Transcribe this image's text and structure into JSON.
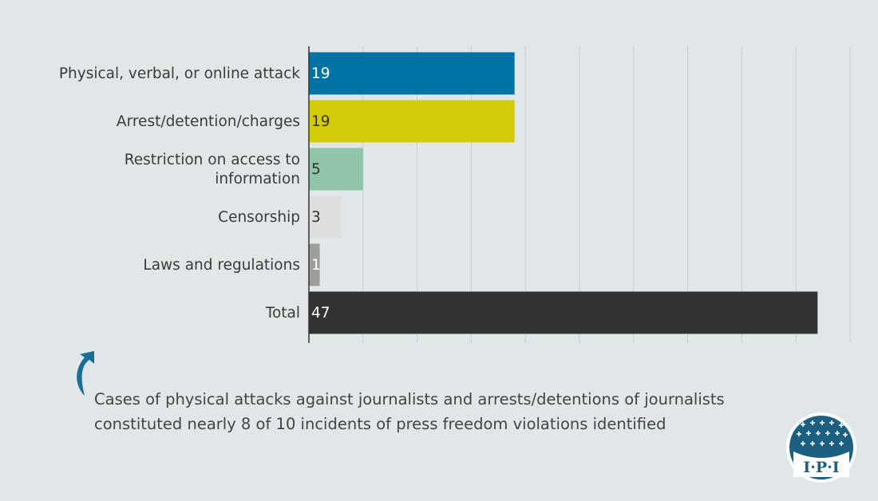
{
  "chart_data": {
    "type": "bar",
    "orientation": "horizontal",
    "categories": [
      [
        "Physical, verbal, or online attack"
      ],
      [
        "Arrest/detention/charges"
      ],
      [
        "Restriction on access to",
        "information"
      ],
      [
        "Censorship"
      ],
      [
        "Laws and regulations"
      ],
      [
        "Total"
      ]
    ],
    "values": [
      19,
      19,
      5,
      3,
      1,
      47
    ],
    "value_labels": [
      "19",
      "19",
      "5",
      "3",
      "1",
      "47"
    ],
    "colors": [
      "#0072a3",
      "#d4cc0a",
      "#8fc4a8",
      "#dedede",
      "#9d9d9d",
      "#333333"
    ],
    "label_colors": [
      "#ffffff",
      "#333333",
      "#333333",
      "#333333",
      "#ffffff",
      "#ffffff"
    ],
    "xlim": [
      0,
      50
    ],
    "grid": true
  },
  "note": {
    "text": "Cases of physical attacks against journalists and arrests/detentions of journalists constituted nearly 8 of 10 incidents of press freedom violations identified"
  },
  "logo": {
    "text": "I·P·I",
    "color": "#1c5f80"
  },
  "arrow": {
    "color": "#1a6f98"
  }
}
